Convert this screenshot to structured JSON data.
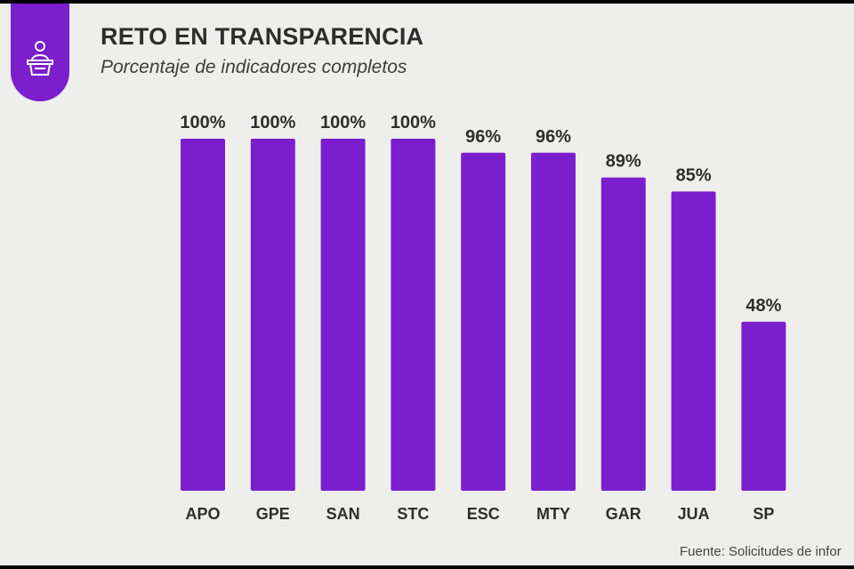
{
  "colors": {
    "bar": "#7b1fce",
    "background": "#eeefed",
    "text": "#2e2e2e"
  },
  "header": {
    "icon": "podium-speaker-icon",
    "title": "RETO EN TRANSPARENCIA",
    "subtitle": "Porcentaje de indicadores completos"
  },
  "footer": {
    "source": "Fuente: Solicitudes de infor"
  },
  "chart_data": {
    "type": "bar",
    "title": "RETO EN TRANSPARENCIA",
    "subtitle": "Porcentaje de indicadores completos",
    "categories": [
      "APO",
      "GPE",
      "SAN",
      "STC",
      "ESC",
      "MTY",
      "GAR",
      "JUA",
      "SP"
    ],
    "values": [
      100,
      100,
      100,
      100,
      96,
      96,
      89,
      85,
      48
    ],
    "labels": [
      "100%",
      "100%",
      "100%",
      "100%",
      "96%",
      "96%",
      "89%",
      "85%",
      "48%"
    ],
    "unit": "%",
    "ylim": [
      0,
      100
    ],
    "xlabel": "",
    "ylabel": "",
    "grid": false,
    "legend": "none"
  }
}
